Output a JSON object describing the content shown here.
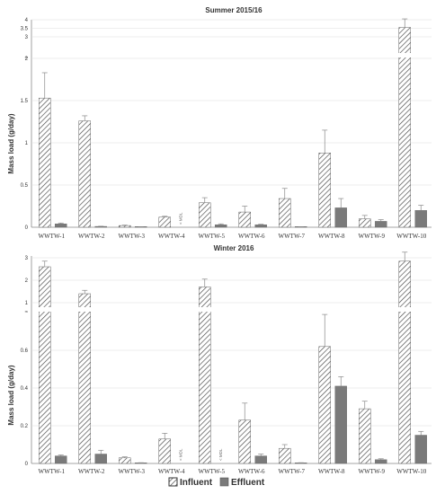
{
  "legend": {
    "influent_label": "Influent",
    "effluent_label": "Effluent",
    "influent_icon": "hatched-square-icon",
    "effluent_icon": "gray-square-icon"
  },
  "colors": {
    "influent_hatch": "#444444",
    "effluent_fill": "#7a7a7a",
    "axis": "#888888"
  },
  "chart_data": [
    {
      "type": "bar",
      "title": "Summer 2015/16",
      "ylabel": "Mass load (g/day)",
      "categories": [
        "WWTW-1",
        "WWTW-2",
        "WWTW-3",
        "WWTW-4",
        "WWTW-5",
        "WWTW-6",
        "WWTW-7",
        "WWTW-8",
        "WWTW-9",
        "WWTW-10"
      ],
      "series": [
        {
          "name": "Influent",
          "values": [
            1.53,
            1.26,
            0.02,
            0.12,
            0.29,
            0.18,
            0.34,
            0.88,
            0.1,
            3.55
          ],
          "errors": [
            0.3,
            0.06,
            0.005,
            0.01,
            0.06,
            0.07,
            0.12,
            0.27,
            0.04,
            0.5
          ]
        },
        {
          "name": "Effluent",
          "values": [
            0.04,
            0.01,
            0.005,
            null,
            0.03,
            0.03,
            0.005,
            0.23,
            0.07,
            0.2
          ],
          "errors": [
            0.01,
            0.002,
            0.001,
            null,
            0.01,
            0.005,
            0.002,
            0.11,
            0.02,
            0.06
          ]
        }
      ],
      "below_mdl": [
        {
          "category": "WWTW-4",
          "series": "Effluent",
          "label": "< MDL"
        }
      ],
      "y_axis_break": {
        "lower": [
          0,
          2
        ],
        "upper": [
          2,
          4
        ]
      },
      "ticks_lower": [
        "0",
        "0.5",
        "1",
        "1.5",
        "2"
      ],
      "ticks_upper": [
        "3",
        "3.5",
        "4"
      ],
      "legend": "bottom"
    },
    {
      "type": "bar",
      "title": "Winter 2016",
      "ylabel": "Mass load (g/day)",
      "categories": [
        "WWTW-1",
        "WWTW-2",
        "WWTW-3",
        "WWTW-4",
        "WWTW-5",
        "WWTW-6",
        "WWTW-7",
        "WWTW-8",
        "WWTW-9",
        "WWTW-10"
      ],
      "series": [
        {
          "name": "Influent",
          "values": [
            2.6,
            1.4,
            0.03,
            0.13,
            1.7,
            0.23,
            0.08,
            0.62,
            0.29,
            2.85
          ],
          "errors": [
            0.25,
            0.15,
            0.005,
            0.03,
            0.35,
            0.09,
            0.02,
            0.17,
            0.04,
            0.4
          ]
        },
        {
          "name": "Effluent",
          "values": [
            0.04,
            0.05,
            0.003,
            null,
            null,
            0.04,
            0.003,
            0.41,
            0.02,
            0.15
          ],
          "errors": [
            0.005,
            0.02,
            0.001,
            null,
            null,
            0.01,
            0.001,
            0.05,
            0.005,
            0.02
          ]
        }
      ],
      "below_mdl": [
        {
          "category": "WWTW-4",
          "series": "Effluent",
          "label": "< MDL"
        },
        {
          "category": "WWTW-5",
          "series": "Effluent",
          "label": "< MDL"
        }
      ],
      "y_axis_break": {
        "lower": [
          0,
          0.8
        ],
        "upper": [
          0.8,
          3
        ]
      },
      "ticks_lower": [
        "0",
        "0.2",
        "0.4",
        "0.6"
      ],
      "ticks_upper": [
        "1",
        "2",
        "3"
      ],
      "legend": "bottom"
    }
  ]
}
